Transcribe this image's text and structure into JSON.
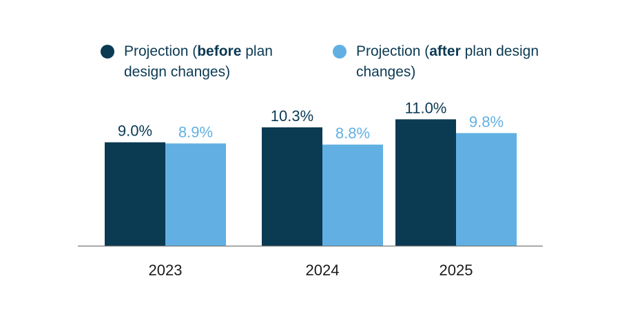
{
  "legend": [
    {
      "pre": "Projection (",
      "bold": "before",
      "post": " plan design changes)",
      "color": "#0b3a53"
    },
    {
      "pre": "Projection (",
      "bold": "after",
      "post": " plan design changes)",
      "color": "#62b0e3"
    }
  ],
  "colors": {
    "before": "#0b3a53",
    "after": "#62b0e3",
    "axis": "#777777",
    "tick_text": "#1a1a1a"
  },
  "chart_data": {
    "type": "bar",
    "categories": [
      "2023",
      "2024",
      "2025"
    ],
    "series": [
      {
        "name": "Projection (before plan design changes)",
        "values": [
          9.0,
          10.3,
          11.0
        ],
        "labels": [
          "9.0%",
          "10.3%",
          "11.0%"
        ]
      },
      {
        "name": "Projection (after plan design changes)",
        "values": [
          8.9,
          8.8,
          9.8
        ],
        "labels": [
          "8.9%",
          "8.8%",
          "9.8%"
        ]
      }
    ],
    "ylim": [
      0,
      11.5
    ],
    "grid": false,
    "legend_position": "top"
  }
}
